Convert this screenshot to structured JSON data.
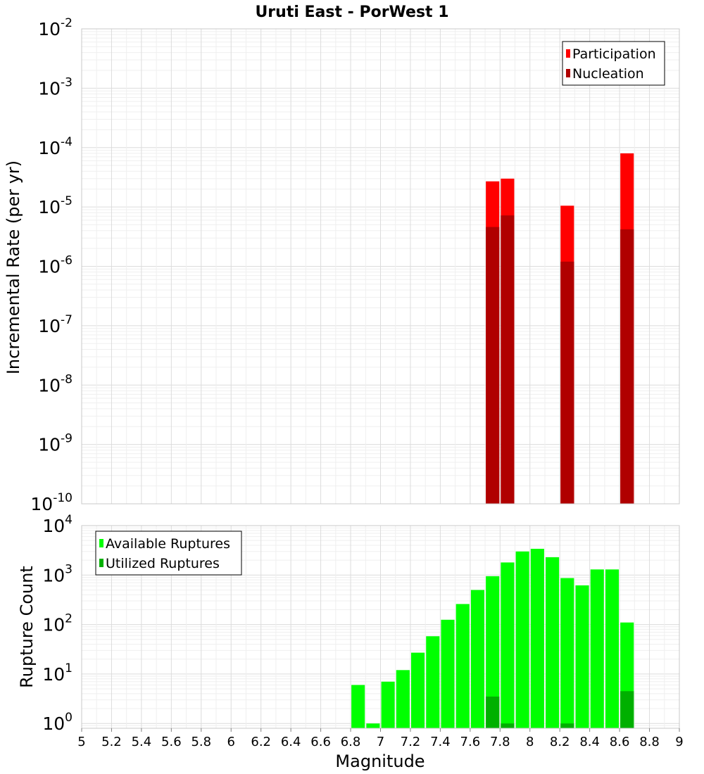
{
  "title": "Uruti East - PorWest 1",
  "colors": {
    "participation": "#ff0000",
    "nucleation": "#b00000",
    "available": "#00ff00",
    "utilized": "#00b000",
    "grid_major": "#dcdcdc",
    "grid_minor": "#efefef",
    "border": "#c8c8c8"
  },
  "chart_data": [
    {
      "type": "bar",
      "title": "Uruti East - PorWest 1",
      "ylabel": "Incremental Rate (per yr)",
      "yscale": "log",
      "ylim": [
        1e-10,
        0.01
      ],
      "y_exponents": [
        -10,
        -9,
        -8,
        -7,
        -6,
        -5,
        -4,
        -3,
        -2
      ],
      "legend_position": "top-right",
      "legend": [
        "Participation",
        "Nucleation"
      ],
      "series": [
        {
          "name": "Participation",
          "x": [
            7.75,
            7.85,
            8.25,
            8.65
          ],
          "values": [
            2.7e-05,
            3e-05,
            1.05e-05,
            8e-05
          ]
        },
        {
          "name": "Nucleation",
          "x": [
            7.75,
            7.85,
            8.25,
            8.65
          ],
          "values": [
            4.6e-06,
            7.2e-06,
            1.2e-06,
            4.2e-06
          ]
        }
      ]
    },
    {
      "type": "bar",
      "xlabel": "Magnitude",
      "ylabel": "Rupture Count",
      "yscale": "log",
      "ylim": [
        0.8,
        10000
      ],
      "y_exponents": [
        0,
        1,
        2,
        3,
        4
      ],
      "xlim": [
        5,
        9
      ],
      "x_ticks": [
        "5",
        "5.2",
        "5.4",
        "5.6",
        "5.8",
        "6",
        "6.2",
        "6.4",
        "6.6",
        "6.8",
        "7",
        "7.2",
        "7.4",
        "7.6",
        "7.8",
        "8",
        "8.2",
        "8.4",
        "8.6",
        "8.8",
        "9"
      ],
      "legend_position": "top-left",
      "legend": [
        "Available Ruptures",
        "Utilized Ruptures"
      ],
      "series": [
        {
          "name": "Available Ruptures",
          "x": [
            6.85,
            6.95,
            7.05,
            7.15,
            7.25,
            7.35,
            7.45,
            7.55,
            7.65,
            7.75,
            7.85,
            7.95,
            8.05,
            8.15,
            8.25,
            8.35,
            8.45,
            8.55,
            8.65
          ],
          "values": [
            6,
            1,
            7,
            12,
            27,
            58,
            125,
            260,
            500,
            950,
            1800,
            3000,
            3400,
            2300,
            870,
            620,
            1300,
            1300,
            110
          ]
        },
        {
          "name": "Utilized Ruptures",
          "x": [
            7.75,
            7.85,
            8.25,
            8.65
          ],
          "values": [
            3.5,
            1,
            1,
            4.5
          ]
        }
      ]
    }
  ]
}
